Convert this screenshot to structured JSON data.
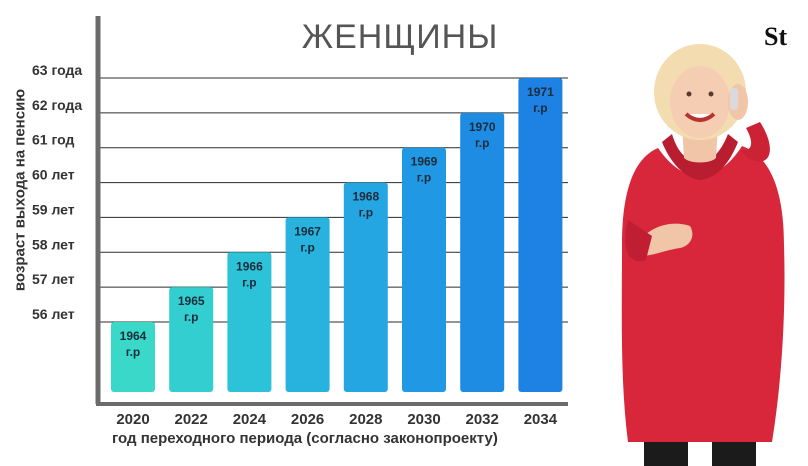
{
  "title": "ЖЕНЩИНЫ",
  "brand_logo": "St",
  "chart_data": {
    "type": "bar",
    "title": "ЖЕНЩИНЫ",
    "ylabel": "возраст выхода на пенсию",
    "xlabel": "год переходного периода (согласно законопроекту)",
    "categories": [
      "2020",
      "2022",
      "2024",
      "2026",
      "2028",
      "2030",
      "2032",
      "2034"
    ],
    "values": [
      56,
      57,
      58,
      59,
      60,
      61,
      62,
      63
    ],
    "bar_labels": [
      [
        "1964",
        "г.р"
      ],
      [
        "1965",
        "г.р"
      ],
      [
        "1966",
        "г.р"
      ],
      [
        "1967",
        "г.р"
      ],
      [
        "1968",
        "г.р"
      ],
      [
        "1969",
        "г.р"
      ],
      [
        "1970",
        "г.р"
      ],
      [
        "1971",
        "г.р"
      ]
    ],
    "yticks": [
      56,
      57,
      58,
      59,
      60,
      61,
      62,
      63
    ],
    "ytick_labels": [
      "56 лет",
      "57 лет",
      "58 лет",
      "59 лет",
      "60 лет",
      "61 год",
      "62 года",
      "63 года"
    ],
    "ylim": [
      54,
      63.2
    ],
    "grid": true,
    "bar_colors": [
      "#39d8c8",
      "#33cfd0",
      "#2cc2d8",
      "#28b3df",
      "#24a6e2",
      "#2198e4",
      "#1f8ce4",
      "#1d82e3"
    ],
    "gridline_color": "#2b2b2b"
  },
  "illustration": {
    "description_icon": "woman-in-red-coat-on-phone"
  }
}
